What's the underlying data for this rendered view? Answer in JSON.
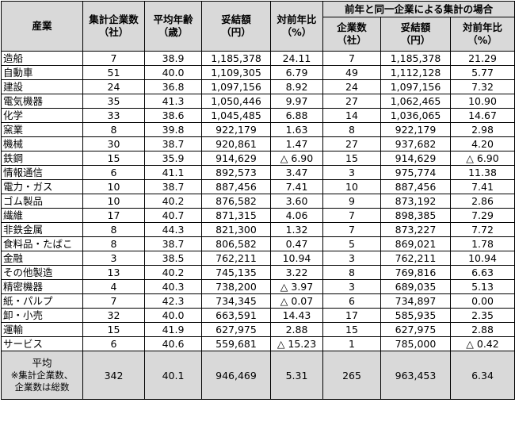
{
  "headers": {
    "industry": "産業",
    "count": [
      "集計企業数",
      "（社）"
    ],
    "age": [
      "平均年齢",
      "（歳）"
    ],
    "amount": [
      "妥結額",
      "（円）"
    ],
    "yoy": [
      "対前年比",
      "（%）"
    ],
    "same_group": "前年と同一企業による集計の場合",
    "count2": [
      "企業数",
      "（社）"
    ],
    "amount2": [
      "妥結額",
      "（円）"
    ],
    "yoy2": [
      "対前年比",
      "（%）"
    ]
  },
  "rows": [
    {
      "industry": "造船",
      "count": "7",
      "age": "38.9",
      "amount": "1,185,378",
      "yoy": "24.11",
      "count2": "7",
      "amount2": "1,185,378",
      "yoy2": "21.29"
    },
    {
      "industry": "自動車",
      "count": "51",
      "age": "40.0",
      "amount": "1,109,305",
      "yoy": "6.79",
      "count2": "49",
      "amount2": "1,112,128",
      "yoy2": "5.77"
    },
    {
      "industry": "建設",
      "count": "24",
      "age": "36.8",
      "amount": "1,097,156",
      "yoy": "8.92",
      "count2": "24",
      "amount2": "1,097,156",
      "yoy2": "7.32"
    },
    {
      "industry": "電気機器",
      "count": "35",
      "age": "41.3",
      "amount": "1,050,446",
      "yoy": "9.97",
      "count2": "27",
      "amount2": "1,062,465",
      "yoy2": "10.90"
    },
    {
      "industry": "化学",
      "count": "33",
      "age": "38.6",
      "amount": "1,045,485",
      "yoy": "6.88",
      "count2": "14",
      "amount2": "1,036,065",
      "yoy2": "14.67"
    },
    {
      "industry": "窯業",
      "count": "8",
      "age": "39.8",
      "amount": "922,179",
      "yoy": "1.63",
      "count2": "8",
      "amount2": "922,179",
      "yoy2": "2.98"
    },
    {
      "industry": "機械",
      "count": "30",
      "age": "38.7",
      "amount": "920,861",
      "yoy": "1.47",
      "count2": "27",
      "amount2": "937,682",
      "yoy2": "4.20"
    },
    {
      "industry": "鉄鋼",
      "count": "15",
      "age": "35.9",
      "amount": "914,629",
      "yoy": "△ 6.90",
      "count2": "15",
      "amount2": "914,629",
      "yoy2": "△ 6.90"
    },
    {
      "industry": "情報通信",
      "count": "6",
      "age": "41.1",
      "amount": "892,573",
      "yoy": "3.47",
      "count2": "3",
      "amount2": "975,774",
      "yoy2": "11.38"
    },
    {
      "industry": "電力・ガス",
      "count": "10",
      "age": "38.7",
      "amount": "887,456",
      "yoy": "7.41",
      "count2": "10",
      "amount2": "887,456",
      "yoy2": "7.41"
    },
    {
      "industry": "ゴム製品",
      "count": "10",
      "age": "40.2",
      "amount": "876,582",
      "yoy": "3.60",
      "count2": "9",
      "amount2": "873,192",
      "yoy2": "2.86"
    },
    {
      "industry": "繊維",
      "count": "17",
      "age": "40.7",
      "amount": "871,315",
      "yoy": "4.06",
      "count2": "7",
      "amount2": "898,385",
      "yoy2": "7.29"
    },
    {
      "industry": "非鉄金属",
      "count": "8",
      "age": "44.3",
      "amount": "821,300",
      "yoy": "1.32",
      "count2": "7",
      "amount2": "873,227",
      "yoy2": "7.72"
    },
    {
      "industry": "食料品・たばこ",
      "count": "8",
      "age": "38.7",
      "amount": "806,582",
      "yoy": "0.47",
      "count2": "5",
      "amount2": "869,021",
      "yoy2": "1.78"
    },
    {
      "industry": "金融",
      "count": "3",
      "age": "38.5",
      "amount": "762,211",
      "yoy": "10.94",
      "count2": "3",
      "amount2": "762,211",
      "yoy2": "10.94"
    },
    {
      "industry": "その他製造",
      "count": "13",
      "age": "40.2",
      "amount": "745,135",
      "yoy": "3.22",
      "count2": "8",
      "amount2": "769,816",
      "yoy2": "6.63"
    },
    {
      "industry": "精密機器",
      "count": "4",
      "age": "40.3",
      "amount": "738,200",
      "yoy": "△ 3.97",
      "count2": "3",
      "amount2": "689,035",
      "yoy2": "5.13"
    },
    {
      "industry": "紙・パルプ",
      "count": "7",
      "age": "42.3",
      "amount": "734,345",
      "yoy": "△ 0.07",
      "count2": "6",
      "amount2": "734,897",
      "yoy2": "0.00"
    },
    {
      "industry": "卸・小売",
      "count": "32",
      "age": "40.0",
      "amount": "663,591",
      "yoy": "14.43",
      "count2": "17",
      "amount2": "585,935",
      "yoy2": "2.35"
    },
    {
      "industry": "運輸",
      "count": "15",
      "age": "41.9",
      "amount": "627,975",
      "yoy": "2.88",
      "count2": "15",
      "amount2": "627,975",
      "yoy2": "2.88"
    },
    {
      "industry": "サービス",
      "count": "6",
      "age": "40.6",
      "amount": "559,681",
      "yoy": "△ 15.23",
      "count2": "1",
      "amount2": "785,000",
      "yoy2": "△ 0.42"
    }
  ],
  "average": {
    "label": [
      "平均",
      "※集計企業数、",
      "企業数は総数"
    ],
    "count": "342",
    "age": "40.1",
    "amount": "946,469",
    "yoy": "5.31",
    "count2": "265",
    "amount2": "963,453",
    "yoy2": "6.34"
  }
}
